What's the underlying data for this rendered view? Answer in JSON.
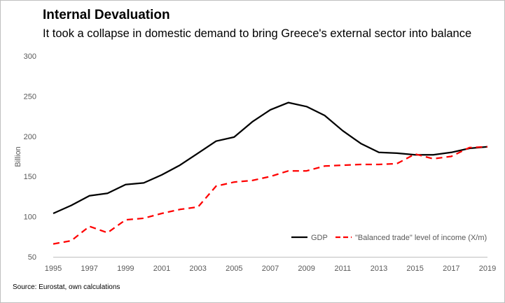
{
  "chart_data": {
    "type": "line",
    "title": "Internal Devaluation",
    "subtitle": "It took a collapse in domestic demand to bring Greece's external sector into balance",
    "ylabel": "Billion",
    "xlabel": "",
    "ylim": [
      50,
      300
    ],
    "yticks": [
      50,
      100,
      150,
      200,
      250,
      300
    ],
    "xlim": [
      1995,
      2019
    ],
    "xticks": [
      1995,
      1997,
      1999,
      2001,
      2003,
      2005,
      2007,
      2009,
      2011,
      2013,
      2015,
      2017,
      2019
    ],
    "grid": false,
    "legend_position": "bottom-right",
    "x": [
      1995,
      1996,
      1997,
      1998,
      1999,
      2000,
      2001,
      2002,
      2003,
      2004,
      2005,
      2006,
      2007,
      2008,
      2009,
      2010,
      2011,
      2012,
      2013,
      2014,
      2015,
      2016,
      2017,
      2018,
      2019
    ],
    "series": [
      {
        "name": "GDP",
        "color": "#000000",
        "style": "solid",
        "values": [
          104,
          114,
          126,
          129,
          140,
          142,
          152,
          164,
          179,
          194,
          199,
          218,
          233,
          242,
          237,
          226,
          207,
          191,
          180,
          179,
          177,
          177,
          180,
          185,
          187
        ]
      },
      {
        "name": "\"Balanced trade\" level of income (X/m)",
        "color": "#ff0000",
        "style": "dashed",
        "values": [
          66,
          70,
          88,
          80,
          96,
          98,
          104,
          109,
          112,
          138,
          143,
          145,
          150,
          157,
          157,
          163,
          164,
          165,
          165,
          166,
          178,
          172,
          175,
          186,
          187
        ]
      }
    ],
    "source": "Source: Eurostat, own calculations"
  }
}
